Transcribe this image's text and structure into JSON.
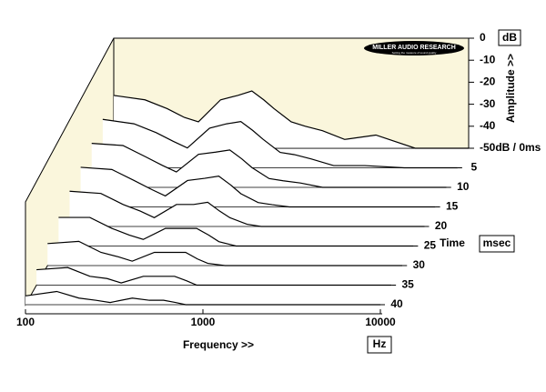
{
  "chart_data": {
    "type": "waterfall",
    "x_label": "Frequency >>",
    "x_unit": "Hz",
    "y_label": "Amplitude >>",
    "y_unit": "dB",
    "z_label": "Time",
    "z_unit": "msec",
    "logo": "MILLER AUDIO RESEARCH",
    "logo_tagline": "Setting the measure of sound quality",
    "x_scale": "log",
    "xlim": [
      100,
      10000
    ],
    "xticks": [
      100,
      1000,
      10000
    ],
    "ylim": [
      -50,
      0
    ],
    "yticks": [
      0,
      -10,
      -20,
      -30,
      -40,
      {
        "value": -50,
        "label": "-50dB / 0ms"
      }
    ],
    "zlim": [
      0,
      40
    ],
    "zticks": [
      5,
      10,
      15,
      20,
      25,
      30,
      35,
      40
    ],
    "panel_color": "#faf6dc",
    "frequencies": [
      100,
      150,
      200,
      250,
      300,
      400,
      500,
      600,
      700,
      800,
      1000,
      1200,
      1500,
      2000,
      3000,
      5000,
      10000
    ],
    "slices": [
      {
        "time": 0,
        "values": [
          -26,
          -28,
          -32,
          -36,
          -38,
          -28,
          -26,
          -24,
          -28,
          -32,
          -38,
          -40,
          -42,
          -46,
          -44,
          -50,
          -50
        ]
      },
      {
        "time": 5,
        "values": [
          -28,
          -30,
          -34,
          -38,
          -41,
          -32,
          -30,
          -29,
          -33,
          -37,
          -43,
          -44,
          -46,
          -49,
          -49,
          -50,
          -50
        ]
      },
      {
        "time": 10,
        "values": [
          -30,
          -31,
          -36,
          -40,
          -43,
          -35,
          -34,
          -33,
          -37,
          -41,
          -46,
          -47,
          -48,
          -50,
          -50,
          -50,
          -50
        ]
      },
      {
        "time": 15,
        "values": [
          -32,
          -33,
          -38,
          -42,
          -45,
          -38,
          -37,
          -36,
          -40,
          -44,
          -48,
          -49,
          -50,
          -50,
          -50,
          -50,
          -50
        ]
      },
      {
        "time": 20,
        "values": [
          -34,
          -35,
          -40,
          -43,
          -46,
          -40,
          -40,
          -39,
          -43,
          -46,
          -49,
          -50,
          -50,
          -50,
          -50,
          -50,
          -50
        ]
      },
      {
        "time": 25,
        "values": [
          -37,
          -37,
          -42,
          -45,
          -47,
          -42,
          -42,
          -42,
          -45,
          -48,
          -50,
          -50,
          -50,
          -50,
          -50,
          -50,
          -50
        ]
      },
      {
        "time": 30,
        "values": [
          -40,
          -39,
          -44,
          -46,
          -48,
          -44,
          -44,
          -44,
          -47,
          -49,
          -50,
          -50,
          -50,
          -50,
          -50,
          -50,
          -50
        ]
      },
      {
        "time": 35,
        "values": [
          -43,
          -42,
          -46,
          -47,
          -49,
          -46,
          -46,
          -46,
          -48,
          -50,
          -50,
          -50,
          -50,
          -50,
          -50,
          -50,
          -50
        ]
      },
      {
        "time": 40,
        "values": [
          -46,
          -44,
          -47,
          -48,
          -49,
          -47,
          -48,
          -48,
          -49,
          -50,
          -50,
          -50,
          -50,
          -50,
          -50,
          -50,
          -50
        ]
      }
    ]
  }
}
